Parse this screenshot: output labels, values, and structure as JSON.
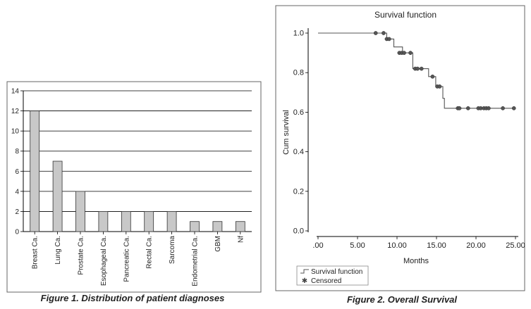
{
  "chart_data": [
    {
      "type": "bar",
      "caption": "Figure 1. Distribution of patient diagnoses",
      "categories": [
        "Breast Ca.",
        "Lung Ca.",
        "Prostate Ca.",
        "Esophageal Ca.",
        "Pancreatic Ca.",
        "Rectal Ca.",
        "Sarcoma",
        "Endometrial Ca.",
        "GBM",
        "Nf"
      ],
      "values": [
        12,
        7,
        4,
        2,
        2,
        2,
        2,
        1,
        1,
        1
      ],
      "yticks": [
        "0",
        "2",
        "4",
        "6",
        "8",
        "10",
        "12",
        "14"
      ],
      "ylim": [
        0,
        14
      ],
      "grid": true,
      "colors": {
        "bar": "#c8c8c8",
        "bar_stroke": "#333333",
        "grid": "#000000"
      }
    },
    {
      "type": "line",
      "title": "Survival function",
      "caption": "Figure 2. Overall Survival",
      "xlabel": "Months",
      "ylabel": "Cum survival",
      "xticks": [
        ".00",
        "5.00",
        "10.00",
        "15.00",
        "20.00",
        "25.00"
      ],
      "yticks": [
        "0.0",
        "0.2",
        "0.4",
        "0.6",
        "0.8",
        "1.0"
      ],
      "xlim": [
        0,
        25
      ],
      "ylim": [
        0,
        1
      ],
      "legend": [
        "Survival function",
        "Censored"
      ],
      "legend_position": "bottom-left",
      "grid": false,
      "series": [
        {
          "name": "Survival function",
          "x": [
            0,
            7.5,
            7.5,
            8.7,
            8.7,
            9.6,
            9.6,
            10.7,
            10.7,
            12.0,
            12.0,
            14.0,
            14.0,
            14.9,
            14.9,
            15.8,
            15.8,
            16.0,
            16.0,
            25.0
          ],
          "y": [
            1.0,
            1.0,
            1.0,
            1.0,
            0.97,
            0.97,
            0.93,
            0.93,
            0.9,
            0.9,
            0.82,
            0.82,
            0.78,
            0.78,
            0.73,
            0.73,
            0.67,
            0.67,
            0.62,
            0.62
          ]
        },
        {
          "name": "Censored",
          "x": [
            7.3,
            8.3,
            8.7,
            9.0,
            10.3,
            10.6,
            10.9,
            11.7,
            12.3,
            12.6,
            13.1,
            14.5,
            15.1,
            15.4,
            17.7,
            17.9,
            19.0,
            20.3,
            20.6,
            21.0,
            21.3,
            21.6,
            23.4,
            24.8
          ],
          "y": [
            1.0,
            1.0,
            0.97,
            0.97,
            0.9,
            0.9,
            0.9,
            0.9,
            0.82,
            0.82,
            0.82,
            0.78,
            0.73,
            0.73,
            0.62,
            0.62,
            0.62,
            0.62,
            0.62,
            0.62,
            0.62,
            0.62,
            0.62,
            0.62
          ]
        }
      ],
      "colors": {
        "line": "#555555",
        "marker": "#555555"
      }
    }
  ]
}
